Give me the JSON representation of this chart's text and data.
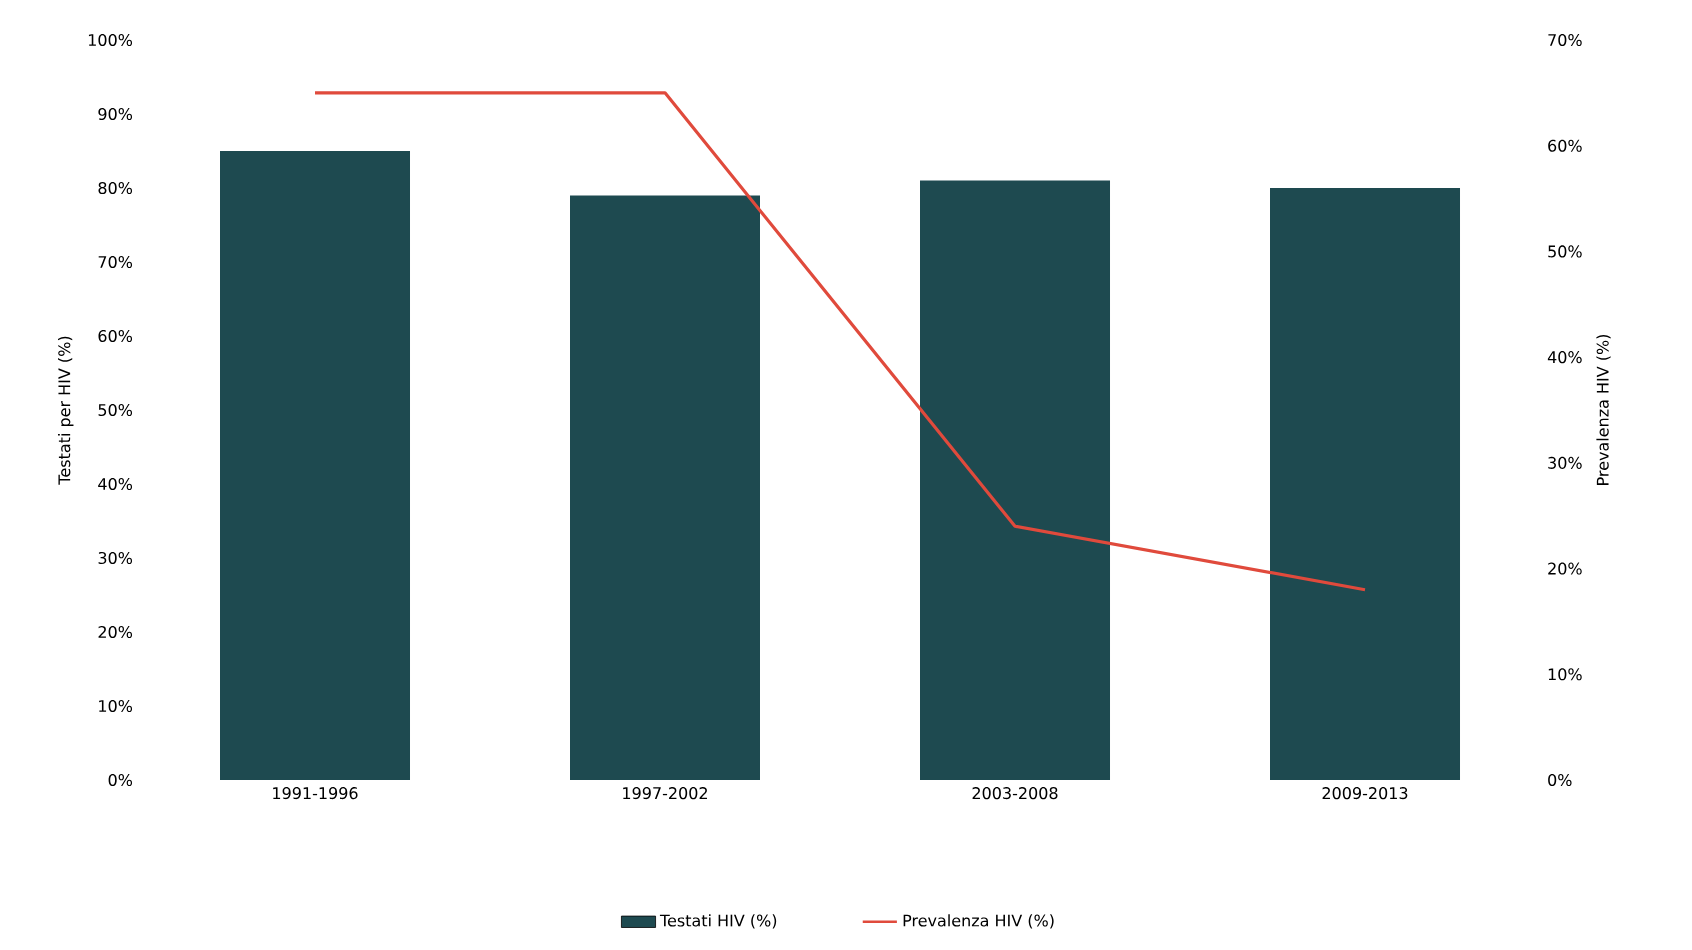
{
  "chart_data": {
    "type": "bar",
    "categories": [
      "1991-1996",
      "1997-2002",
      "2003-2008",
      "2009-2013"
    ],
    "ylabel": "Testati per HIV (%)",
    "y2label": "Prevalenza HIV (%)",
    "series": [
      {
        "name": "Testati HIV (%)",
        "color": "#1e4a50",
        "values": [
          85,
          79,
          81,
          80
        ]
      },
      {
        "name": "Prevalenza HIV (%)",
        "type": "line",
        "axis": "y2",
        "color": "#e04a3c",
        "values": [
          65,
          65,
          24,
          18
        ]
      }
    ],
    "ylim": [
      0,
      100
    ],
    "yticks": [
      {
        "value": 0,
        "label": "0%"
      },
      {
        "value": 10,
        "label": "10%"
      },
      {
        "value": 20,
        "label": "20%"
      },
      {
        "value": 30,
        "label": "30%"
      },
      {
        "value": 40,
        "label": "40%"
      },
      {
        "value": 50,
        "label": "50%"
      },
      {
        "value": 60,
        "label": "60%"
      },
      {
        "value": 70,
        "label": "70%"
      },
      {
        "value": 80,
        "label": "80%"
      },
      {
        "value": 90,
        "label": "90%"
      },
      {
        "value": 100,
        "label": "100%"
      }
    ],
    "y2lim": [
      0,
      70
    ],
    "y2ticks": [
      {
        "value": 0,
        "label": "0%"
      },
      {
        "value": 10,
        "label": "10%"
      },
      {
        "value": 20,
        "label": "20%"
      },
      {
        "value": 30,
        "label": "30%"
      },
      {
        "value": 40,
        "label": "40%"
      },
      {
        "value": 50,
        "label": "50%"
      },
      {
        "value": 60,
        "label": "60%"
      },
      {
        "value": 70,
        "label": "70%"
      }
    ],
    "legend": "bottom"
  }
}
